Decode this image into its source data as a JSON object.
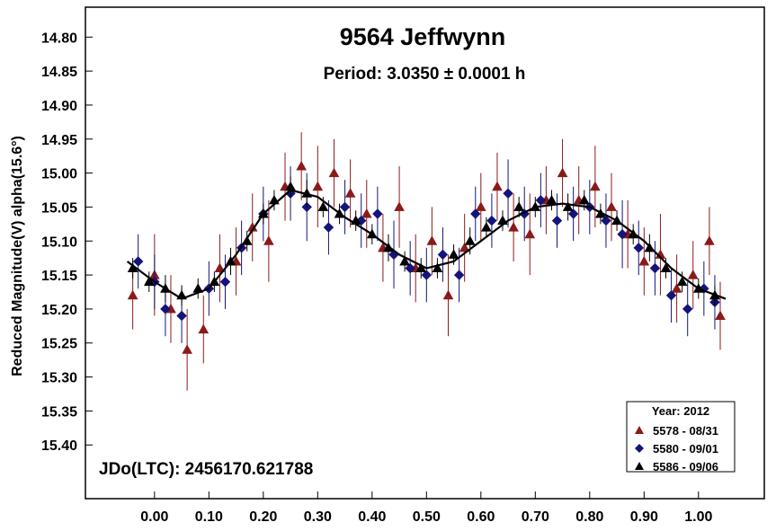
{
  "chart_data": {
    "type": "scatter",
    "title": "9564 Jeffwynn",
    "subtitle": "Period: 3.0350 ± 0.0001 h",
    "ylabel": "Reduced Magnitude(V) alpha(15.6°)",
    "annotation": "JDo(LTC): 2456170.621788",
    "legend_title": "Year: 2012",
    "legend_position": "lower right",
    "y_inverted": true,
    "xlim": [
      -0.127,
      1.121
    ],
    "ylim": [
      14.756,
      15.479
    ],
    "xticks": [
      {
        "value": 0,
        "label": "0.00"
      },
      {
        "value": 0.1,
        "label": "0.10"
      },
      {
        "value": 0.2,
        "label": "0.20"
      },
      {
        "value": 0.3,
        "label": "0.30"
      },
      {
        "value": 0.4,
        "label": "0.40"
      },
      {
        "value": 0.5,
        "label": "0.50"
      },
      {
        "value": 0.6,
        "label": "0.60"
      },
      {
        "value": 0.7,
        "label": "0.70"
      },
      {
        "value": 0.8,
        "label": "0.80"
      },
      {
        "value": 0.9,
        "label": "0.90"
      },
      {
        "value": 1,
        "label": "1.00"
      }
    ],
    "yticks": [
      {
        "value": 14.8,
        "label": "14.80"
      },
      {
        "value": 14.85,
        "label": "14.85"
      },
      {
        "value": 14.9,
        "label": "14.90"
      },
      {
        "value": 14.95,
        "label": "14.95"
      },
      {
        "value": 15,
        "label": "15.00"
      },
      {
        "value": 15.05,
        "label": "15.05"
      },
      {
        "value": 15.1,
        "label": "15.10"
      },
      {
        "value": 15.15,
        "label": "15.15"
      },
      {
        "value": 15.2,
        "label": "15.20"
      },
      {
        "value": 15.25,
        "label": "15.25"
      },
      {
        "value": 15.3,
        "label": "15.30"
      },
      {
        "value": 15.35,
        "label": "15.35"
      },
      {
        "value": 15.4,
        "label": "15.40"
      }
    ],
    "series": [
      {
        "name": "5578 - 08/31",
        "color": "#8b1a1a",
        "marker": "triangle",
        "x": [
          -0.04,
          0.0,
          0.03,
          0.06,
          0.09,
          0.12,
          0.15,
          0.18,
          0.21,
          0.24,
          0.27,
          0.3,
          0.33,
          0.36,
          0.39,
          0.42,
          0.45,
          0.48,
          0.51,
          0.54,
          0.57,
          0.6,
          0.63,
          0.66,
          0.69,
          0.72,
          0.75,
          0.78,
          0.81,
          0.84,
          0.87,
          0.9,
          0.93,
          0.96,
          0.99,
          1.02,
          1.04
        ],
        "values": [
          15.18,
          15.15,
          15.2,
          15.26,
          15.23,
          15.14,
          15.13,
          15.08,
          15.1,
          15.02,
          14.99,
          15.02,
          15.0,
          15.03,
          15.06,
          15.11,
          15.05,
          15.14,
          15.1,
          15.18,
          15.11,
          15.05,
          15.02,
          15.08,
          15.09,
          15.04,
          15.0,
          15.04,
          15.02,
          15.05,
          15.09,
          15.13,
          15.12,
          15.17,
          15.15,
          15.1,
          15.21
        ],
        "errors": [
          0.05,
          0.06,
          0.05,
          0.06,
          0.05,
          0.05,
          0.05,
          0.05,
          0.06,
          0.05,
          0.05,
          0.06,
          0.05,
          0.05,
          0.05,
          0.05,
          0.06,
          0.05,
          0.05,
          0.06,
          0.05,
          0.05,
          0.05,
          0.05,
          0.06,
          0.05,
          0.05,
          0.05,
          0.06,
          0.05,
          0.05,
          0.05,
          0.06,
          0.05,
          0.05,
          0.05,
          0.05
        ]
      },
      {
        "name": "5580 - 09/01",
        "color": "#14147a",
        "marker": "diamond",
        "x": [
          -0.03,
          0.0,
          0.02,
          0.05,
          0.1,
          0.13,
          0.16,
          0.2,
          0.25,
          0.28,
          0.32,
          0.35,
          0.38,
          0.41,
          0.44,
          0.47,
          0.5,
          0.53,
          0.56,
          0.59,
          0.62,
          0.65,
          0.68,
          0.71,
          0.74,
          0.77,
          0.8,
          0.83,
          0.86,
          0.89,
          0.92,
          0.95,
          0.98,
          1.01,
          1.03
        ],
        "values": [
          15.13,
          15.16,
          15.2,
          15.21,
          15.17,
          15.16,
          15.11,
          15.06,
          15.03,
          15.05,
          15.08,
          15.05,
          15.07,
          15.06,
          15.12,
          15.14,
          15.15,
          15.12,
          15.15,
          15.06,
          15.07,
          15.03,
          15.06,
          15.04,
          15.07,
          15.06,
          15.05,
          15.07,
          15.09,
          15.11,
          15.14,
          15.18,
          15.2,
          15.17,
          15.19
        ],
        "errors": [
          0.04,
          0.04,
          0.04,
          0.04,
          0.04,
          0.04,
          0.04,
          0.04,
          0.04,
          0.05,
          0.04,
          0.04,
          0.04,
          0.04,
          0.05,
          0.04,
          0.04,
          0.04,
          0.04,
          0.04,
          0.04,
          0.05,
          0.04,
          0.04,
          0.04,
          0.04,
          0.04,
          0.04,
          0.05,
          0.04,
          0.04,
          0.04,
          0.04,
          0.04,
          0.04
        ]
      },
      {
        "name": "5586 - 09/06",
        "color": "#000000",
        "marker": "triangle",
        "x": [
          -0.04,
          -0.01,
          0.02,
          0.05,
          0.08,
          0.11,
          0.14,
          0.17,
          0.2,
          0.22,
          0.25,
          0.28,
          0.31,
          0.34,
          0.37,
          0.4,
          0.43,
          0.46,
          0.49,
          0.52,
          0.55,
          0.58,
          0.61,
          0.64,
          0.67,
          0.7,
          0.73,
          0.76,
          0.79,
          0.82,
          0.85,
          0.88,
          0.91,
          0.94,
          0.97,
          1.0,
          1.03
        ],
        "values": [
          15.14,
          15.16,
          15.17,
          15.18,
          15.17,
          15.16,
          15.13,
          15.1,
          15.06,
          15.04,
          15.02,
          15.03,
          15.05,
          15.06,
          15.07,
          15.09,
          15.11,
          15.13,
          15.14,
          15.14,
          15.12,
          15.1,
          15.08,
          15.07,
          15.05,
          15.05,
          15.04,
          15.05,
          15.04,
          15.06,
          15.07,
          15.09,
          15.11,
          15.14,
          15.16,
          15.17,
          15.18
        ],
        "errors": [
          0.015,
          0.015,
          0.02,
          0.015,
          0.015,
          0.015,
          0.02,
          0.015,
          0.015,
          0.015,
          0.015,
          0.02,
          0.015,
          0.015,
          0.015,
          0.015,
          0.02,
          0.015,
          0.015,
          0.015,
          0.015,
          0.02,
          0.015,
          0.015,
          0.015,
          0.015,
          0.015,
          0.02,
          0.015,
          0.015,
          0.015,
          0.015,
          0.02,
          0.015,
          0.015,
          0.015,
          0.015
        ]
      },
      {
        "color": "#000000",
        "marker": "line",
        "x": [
          -0.05,
          0.0,
          0.05,
          0.1,
          0.15,
          0.2,
          0.25,
          0.3,
          0.35,
          0.4,
          0.45,
          0.5,
          0.55,
          0.6,
          0.65,
          0.7,
          0.75,
          0.8,
          0.85,
          0.9,
          0.95,
          1.0,
          1.05
        ],
        "values": [
          15.13,
          15.16,
          15.185,
          15.17,
          15.12,
          15.06,
          15.025,
          15.035,
          15.065,
          15.09,
          15.12,
          15.14,
          15.13,
          15.1,
          15.07,
          15.05,
          15.045,
          15.05,
          15.07,
          15.1,
          15.14,
          15.17,
          15.185
        ]
      }
    ]
  }
}
